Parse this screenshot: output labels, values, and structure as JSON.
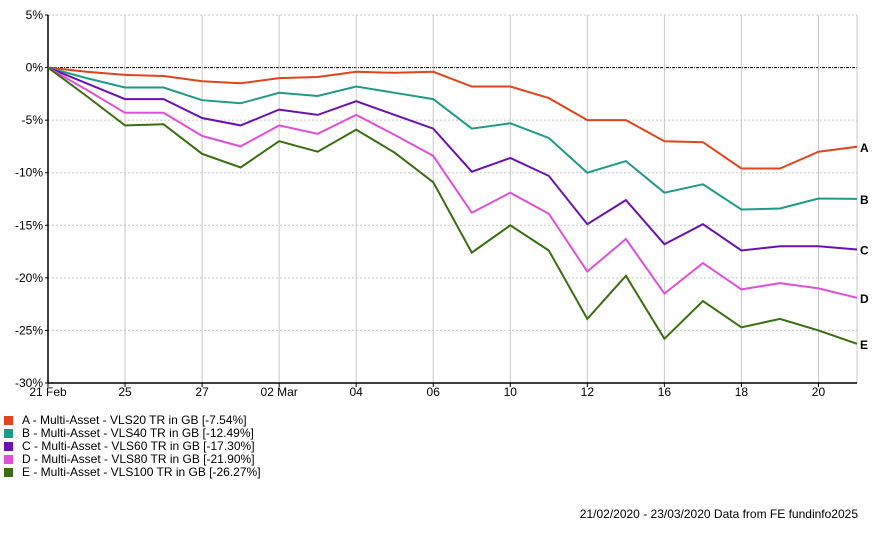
{
  "chart_data": {
    "type": "line",
    "title": "",
    "xlabel": "",
    "ylabel": "",
    "ylim": [
      -30,
      5
    ],
    "yticks": [
      5,
      0,
      -5,
      -10,
      -15,
      -20,
      -25,
      -30
    ],
    "ytick_labels": [
      "5%",
      "0%",
      "-5%",
      "-10%",
      "-15%",
      "-20%",
      "-25%",
      "-30%"
    ],
    "x": [
      "21 Feb",
      "24 Feb",
      "25 Feb",
      "26 Feb",
      "27 Feb",
      "28 Feb",
      "02 Mar",
      "03 Mar",
      "04 Mar",
      "05 Mar",
      "06 Mar",
      "09 Mar",
      "10 Mar",
      "11 Mar",
      "12 Mar",
      "13 Mar",
      "16 Mar",
      "17 Mar",
      "18 Mar",
      "19 Mar",
      "20 Mar",
      "23 Mar"
    ],
    "xtick_labels": [
      {
        "index": 0,
        "label": "21 Feb"
      },
      {
        "index": 2,
        "label": "25"
      },
      {
        "index": 4,
        "label": "27"
      },
      {
        "index": 6,
        "label": "02 Mar"
      },
      {
        "index": 8,
        "label": "04"
      },
      {
        "index": 10,
        "label": "06"
      },
      {
        "index": 12,
        "label": "10"
      },
      {
        "index": 14,
        "label": "12"
      },
      {
        "index": 16,
        "label": "16"
      },
      {
        "index": 18,
        "label": "18"
      },
      {
        "index": 20,
        "label": "20"
      }
    ],
    "grid": true,
    "legend_position": "bottom-left",
    "series": [
      {
        "key": "A",
        "name": "A - Multi-Asset - VLS20 TR in GB [-7.54%]",
        "color": "#e0441c",
        "values": [
          0,
          -0.4,
          -0.7,
          -0.8,
          -1.3,
          -1.5,
          -1.0,
          -0.9,
          -0.4,
          -0.5,
          -0.4,
          -1.8,
          -1.8,
          -2.9,
          -5.0,
          -5.0,
          -7.0,
          -7.1,
          -9.6,
          -9.6,
          -8.0,
          -7.54
        ]
      },
      {
        "key": "B",
        "name": "B - Multi-Asset - VLS40 TR in GB [-12.49%]",
        "color": "#1f9a88",
        "values": [
          0,
          -1.0,
          -1.9,
          -1.9,
          -3.1,
          -3.4,
          -2.4,
          -2.7,
          -1.8,
          -2.4,
          -3.0,
          -5.8,
          -5.3,
          -6.7,
          -10.0,
          -8.9,
          -11.9,
          -11.1,
          -13.5,
          -13.4,
          -12.45,
          -12.49
        ]
      },
      {
        "key": "C",
        "name": "C - Multi-Asset - VLS60 TR in GB [-17.30%]",
        "color": "#6a12b0",
        "values": [
          0,
          -1.5,
          -3.0,
          -3.0,
          -4.8,
          -5.5,
          -4.0,
          -4.5,
          -3.2,
          -4.5,
          -5.8,
          -9.9,
          -8.6,
          -10.3,
          -14.9,
          -12.6,
          -16.8,
          -14.9,
          -17.4,
          -17.0,
          -17.0,
          -17.3
        ]
      },
      {
        "key": "D",
        "name": "D - Multi-Asset - VLS80 TR in GB [-21.90%]",
        "color": "#e04fd8",
        "values": [
          0,
          -2.1,
          -4.3,
          -4.3,
          -6.5,
          -7.5,
          -5.5,
          -6.3,
          -4.5,
          -6.4,
          -8.4,
          -13.8,
          -11.9,
          -13.9,
          -19.4,
          -16.3,
          -21.5,
          -18.6,
          -21.1,
          -20.5,
          -21.0,
          -21.9
        ]
      },
      {
        "key": "E",
        "name": "E - Multi-Asset - VLS100 TR in GB [-26.27%]",
        "color": "#3a6e10",
        "values": [
          0,
          -2.7,
          -5.5,
          -5.4,
          -8.2,
          -9.5,
          -7.0,
          -8.0,
          -5.9,
          -8.1,
          -10.9,
          -17.6,
          -15.0,
          -17.4,
          -23.9,
          -19.8,
          -25.8,
          -22.2,
          -24.7,
          -23.9,
          -25.0,
          -26.27
        ]
      }
    ]
  },
  "footer": "21/02/2020 - 23/03/2020 Data from FE fundinfo2025"
}
